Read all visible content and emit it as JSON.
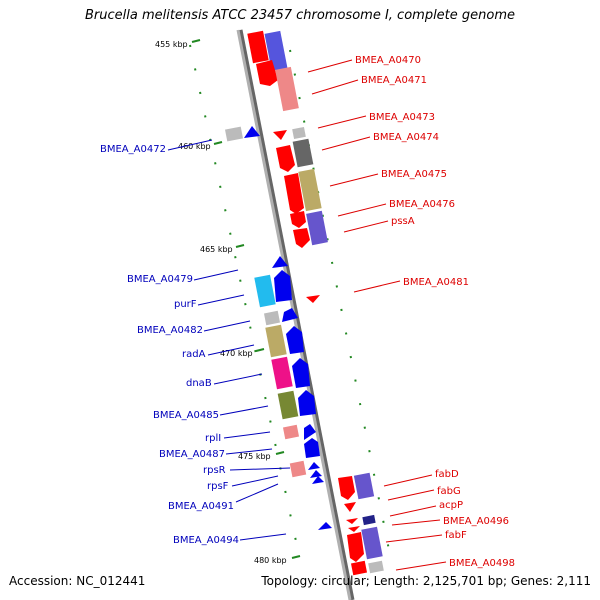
{
  "title": "Brucella melitensis ATCC 23457 chromosome I, complete genome",
  "accession": "Accession: NC_012441",
  "summary": "Topology: circular; Length: 2,125,701 bp; Genes: 2,111",
  "ticks": [
    {
      "label": "455 kbp"
    },
    {
      "label": "460 kbp"
    },
    {
      "label": "465 kbp"
    },
    {
      "label": "470 kbp"
    },
    {
      "label": "475 kbp"
    },
    {
      "label": "480 kbp"
    }
  ],
  "forward_labels": [
    {
      "name": "BMEA_A0470"
    },
    {
      "name": "BMEA_A0471"
    },
    {
      "name": "BMEA_A0473"
    },
    {
      "name": "BMEA_A0474"
    },
    {
      "name": "BMEA_A0475"
    },
    {
      "name": "BMEA_A0476"
    },
    {
      "name": "pssA"
    },
    {
      "name": "BMEA_A0481"
    },
    {
      "name": "fabD"
    },
    {
      "name": "fabG"
    },
    {
      "name": "acpP"
    },
    {
      "name": "BMEA_A0496"
    },
    {
      "name": "fabF"
    },
    {
      "name": "BMEA_A0498"
    }
  ],
  "reverse_labels": [
    {
      "name": "BMEA_A0472"
    },
    {
      "name": "BMEA_A0479"
    },
    {
      "name": "purF"
    },
    {
      "name": "BMEA_A0482"
    },
    {
      "name": "radA"
    },
    {
      "name": "dnaB"
    },
    {
      "name": "BMEA_A0485"
    },
    {
      "name": "rplI"
    },
    {
      "name": "BMEA_A0487"
    },
    {
      "name": "rpsR"
    },
    {
      "name": "rpsF"
    },
    {
      "name": "BMEA_A0491"
    },
    {
      "name": "BMEA_A0494"
    }
  ],
  "colors": {
    "forward_strand": "#ff0000",
    "reverse_strand": "#0000ee",
    "forward_label": "#dd0000",
    "reverse_label": "#0000bb",
    "backbone": "#999999",
    "tick": "#228822"
  }
}
